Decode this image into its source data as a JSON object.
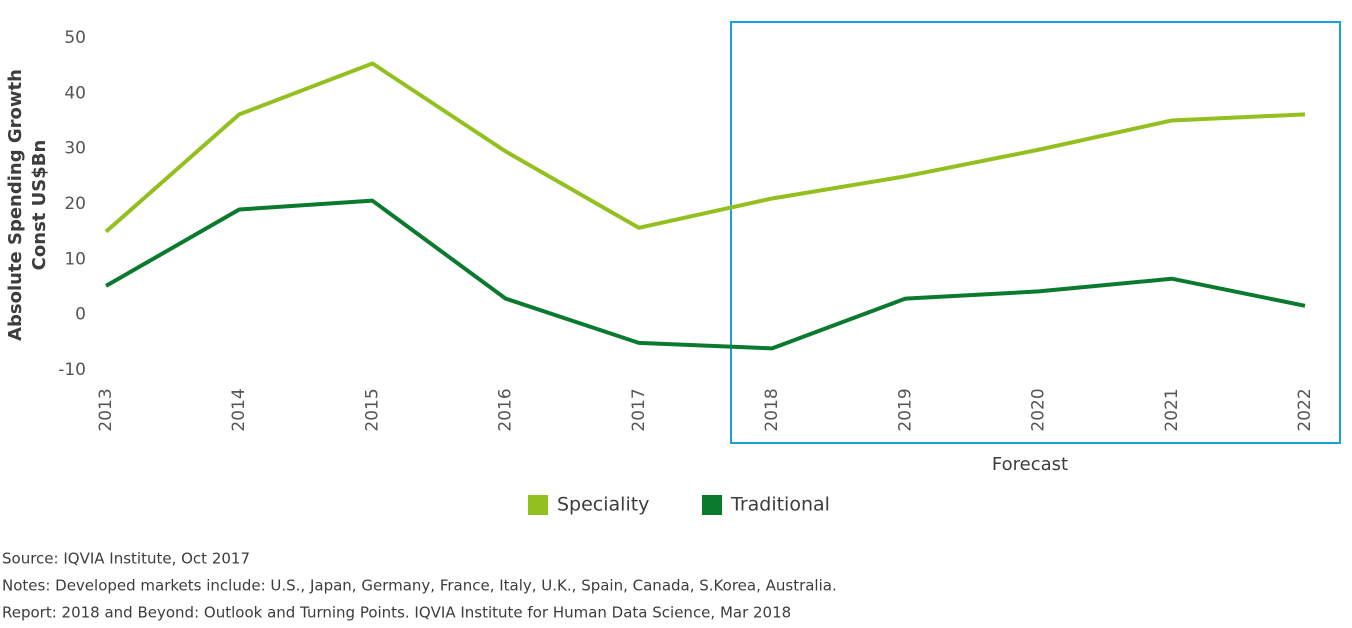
{
  "chart_data": {
    "type": "line",
    "y_label": [
      "Absolute Spending Growth",
      "Const US$Bn"
    ],
    "x": [
      "2013",
      "2014",
      "2015",
      "2016",
      "2017",
      "2018",
      "2019",
      "2020",
      "2021",
      "2022"
    ],
    "series": [
      {
        "name": "Speciality",
        "color": "#93c01f",
        "values": [
          15,
          36.2,
          45.4,
          29.5,
          15.7,
          21,
          25,
          29.8,
          35.1,
          36.2
        ]
      },
      {
        "name": "Traditional",
        "color": "#0a7a2e",
        "values": [
          5.2,
          19,
          20.6,
          2.9,
          -5.1,
          -6.1,
          2.9,
          4.2,
          6.5,
          1.6
        ]
      }
    ],
    "ylim": [
      -10,
      50
    ],
    "yticks": [
      -10,
      0,
      10,
      20,
      30,
      40,
      50
    ],
    "grid": false,
    "annotation": "Forecast",
    "footnotes": [
      "Source: IQVIA Institute, Oct 2017",
      "Notes: Developed markets include: U.S., Japan, Germany, France, Italy, U.K., Spain, Canada, S.Korea, Australia.",
      "Report: 2018 and Beyond: Outlook and Turning Points. IQVIA Institute for Human Data Science, Mar 2018"
    ]
  }
}
